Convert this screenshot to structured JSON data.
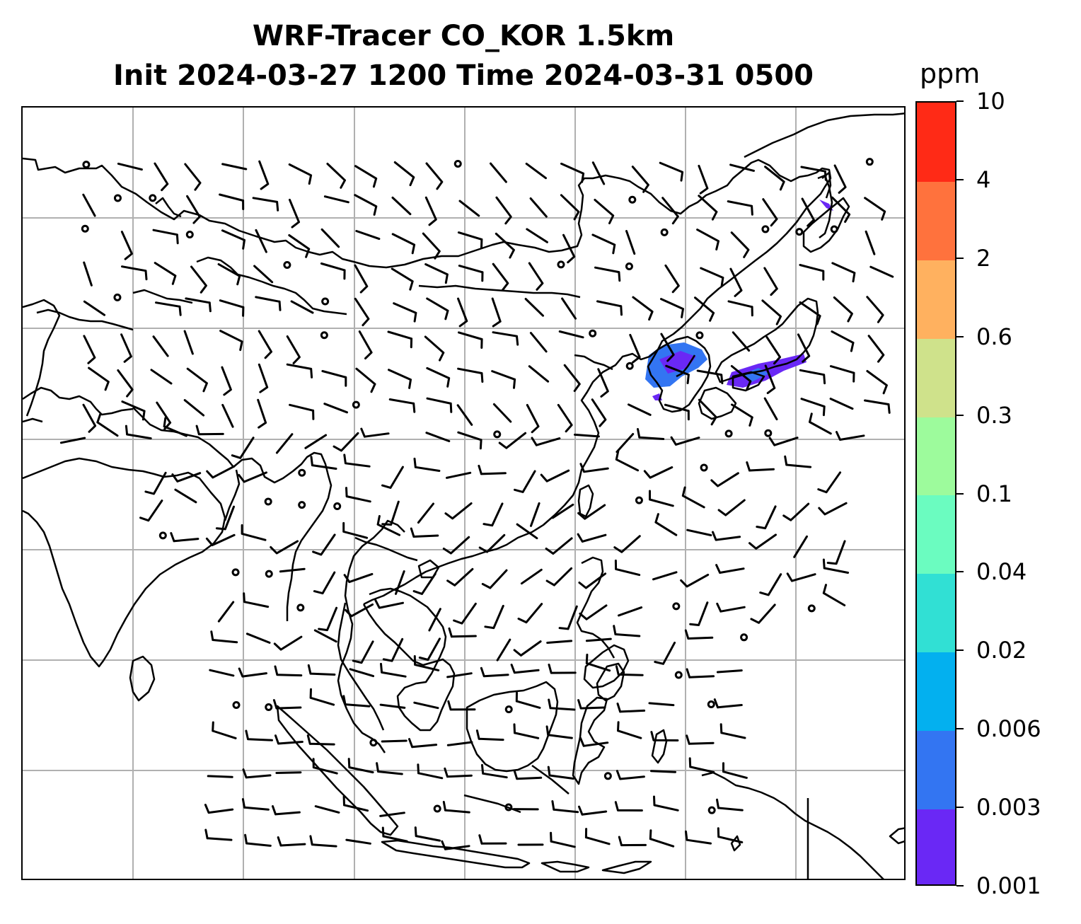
{
  "title": {
    "line1": "WRF-Tracer CO_KOR 1.5km",
    "line2": "Init 2024-03-27 1200 Time 2024-03-31 0500"
  },
  "colorbar": {
    "unit": "ppm",
    "levels": [
      "0.001",
      "0.003",
      "0.006",
      "0.02",
      "0.04",
      "0.1",
      "0.3",
      "0.6",
      "2",
      "4",
      "10"
    ],
    "colors": [
      "#6a28f5",
      "#3375f2",
      "#03b0ef",
      "#31e0d4",
      "#6bfcc0",
      "#9dfb9c",
      "#cfe28b",
      "#ffb15f",
      "#ff723d",
      "#ff2a16"
    ]
  },
  "map": {
    "gridlines": true,
    "gridline_color": "#b0b0b0",
    "coastline_color": "#000000",
    "wind_barbs": true,
    "tracer_color": "#3a5cf5"
  }
}
